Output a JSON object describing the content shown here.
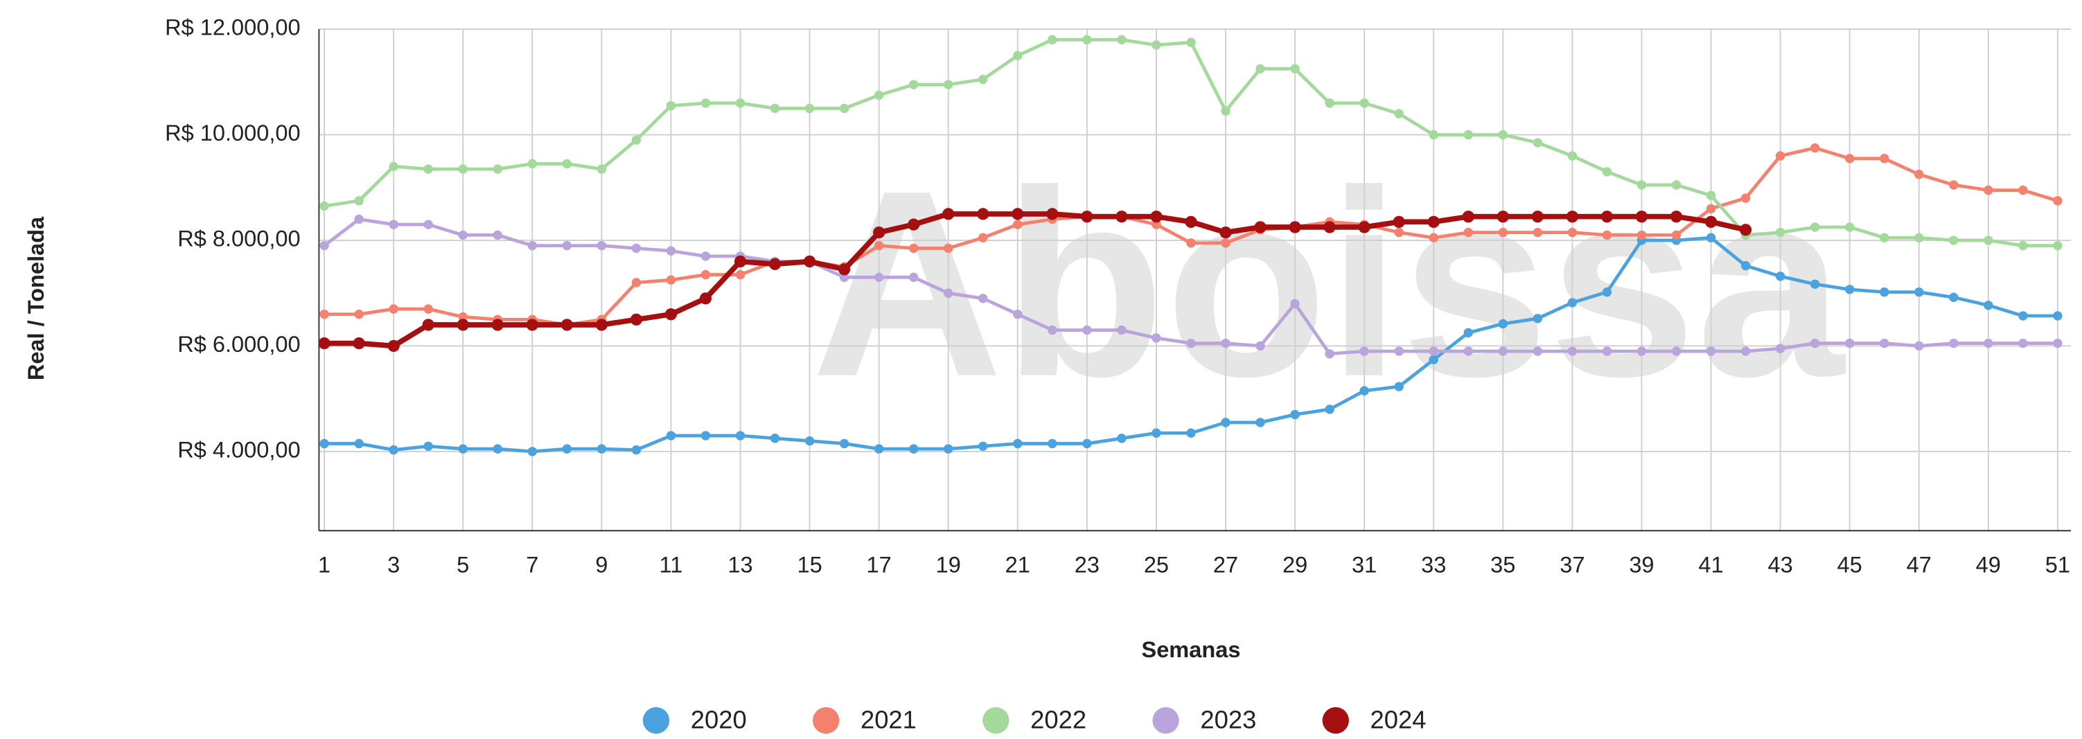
{
  "chart_data": {
    "type": "line",
    "watermark": "Aboissa",
    "ylabel": "Real / Tonelada",
    "xlabel": "Semanas",
    "x": [
      1,
      2,
      3,
      4,
      5,
      6,
      7,
      8,
      9,
      10,
      11,
      12,
      13,
      14,
      15,
      16,
      17,
      18,
      19,
      20,
      21,
      22,
      23,
      24,
      25,
      26,
      27,
      28,
      29,
      30,
      31,
      32,
      33,
      34,
      35,
      36,
      37,
      38,
      39,
      40,
      41,
      42,
      43,
      44,
      45,
      46,
      47,
      48,
      49,
      50,
      51
    ],
    "xlim": [
      1,
      51
    ],
    "xticks": [
      1,
      3,
      5,
      7,
      9,
      11,
      13,
      15,
      17,
      19,
      21,
      23,
      25,
      27,
      29,
      31,
      33,
      35,
      37,
      39,
      41,
      43,
      45,
      47,
      49,
      51
    ],
    "ylim": [
      2500,
      12000
    ],
    "yticks": [
      {
        "value": 4000,
        "label": "R$ 4.000,00"
      },
      {
        "value": 6000,
        "label": "R$ 6.000,00"
      },
      {
        "value": 8000,
        "label": "R$ 8.000,00"
      },
      {
        "value": 10000,
        "label": "R$ 10.000,00"
      },
      {
        "value": 12000,
        "label": "R$ 12.000,00"
      }
    ],
    "grid": true,
    "legend": "bottom",
    "series": [
      {
        "name": "2020",
        "color": "#4aa3df",
        "values": [
          4150,
          4150,
          4030,
          4100,
          4050,
          4050,
          4000,
          4050,
          4050,
          4030,
          4300,
          4300,
          4300,
          4250,
          4200,
          4150,
          4050,
          4050,
          4050,
          4100,
          4150,
          4150,
          4150,
          4250,
          4350,
          4350,
          4550,
          4550,
          4700,
          4800,
          5150,
          5230,
          5740,
          6250,
          6420,
          6520,
          6820,
          7020,
          8000,
          8000,
          8050,
          7520,
          7320,
          7170,
          7070,
          7020,
          7020,
          6920,
          6770,
          6570,
          6570
        ]
      },
      {
        "name": "2021",
        "color": "#f4806e",
        "values": [
          6600,
          6600,
          6700,
          6700,
          6550,
          6500,
          6500,
          6400,
          6500,
          7200,
          7250,
          7350,
          7350,
          7600,
          7600,
          7500,
          7900,
          7850,
          7850,
          8050,
          8300,
          8400,
          8450,
          8450,
          8300,
          7950,
          7950,
          8200,
          8250,
          8350,
          8300,
          8150,
          8050,
          8150,
          8150,
          8150,
          8150,
          8100,
          8100,
          8100,
          8600,
          8800,
          9600,
          9750,
          9550,
          9550,
          9250,
          9050,
          8950,
          8950,
          8750
        ]
      },
      {
        "name": "2022",
        "color": "#a3d99b",
        "values": [
          8650,
          8750,
          9400,
          9350,
          9350,
          9350,
          9450,
          9450,
          9350,
          9900,
          10550,
          10600,
          10600,
          10500,
          10500,
          10500,
          10750,
          10950,
          10950,
          11050,
          11500,
          11800,
          11800,
          11800,
          11700,
          11750,
          10450,
          11250,
          11250,
          10600,
          10600,
          10400,
          10000,
          10000,
          10000,
          9850,
          9600,
          9300,
          9050,
          9050,
          8850,
          8100,
          8150,
          8250,
          8250,
          8050,
          8050,
          8000,
          8000,
          7900,
          7900
        ]
      },
      {
        "name": "2023",
        "color": "#b9a5db",
        "values": [
          7900,
          8400,
          8300,
          8300,
          8100,
          8100,
          7900,
          7900,
          7900,
          7850,
          7800,
          7700,
          7700,
          7600,
          7600,
          7300,
          7300,
          7300,
          7000,
          6900,
          6600,
          6300,
          6300,
          6300,
          6150,
          6050,
          6050,
          6000,
          6800,
          5850,
          5900,
          5900,
          5900,
          5900,
          5900,
          5900,
          5900,
          5900,
          5900,
          5900,
          5900,
          5900,
          5950,
          6050,
          6050,
          6050,
          6000,
          6050,
          6050,
          6050,
          6050
        ]
      },
      {
        "name": "2024",
        "color": "#a50f0f",
        "values": [
          6050,
          6050,
          6000,
          6400,
          6400,
          6400,
          6400,
          6400,
          6400,
          6500,
          6600,
          6900,
          7600,
          7550,
          7600,
          7450,
          8150,
          8300,
          8500,
          8500,
          8500,
          8500,
          8450,
          8450,
          8450,
          8350,
          8150,
          8250,
          8250,
          8250,
          8250,
          8350,
          8350,
          8450,
          8450,
          8450,
          8450,
          8450,
          8450,
          8450,
          8350,
          8200,
          null,
          null,
          null,
          null,
          null,
          null,
          null,
          null,
          null
        ]
      }
    ]
  }
}
